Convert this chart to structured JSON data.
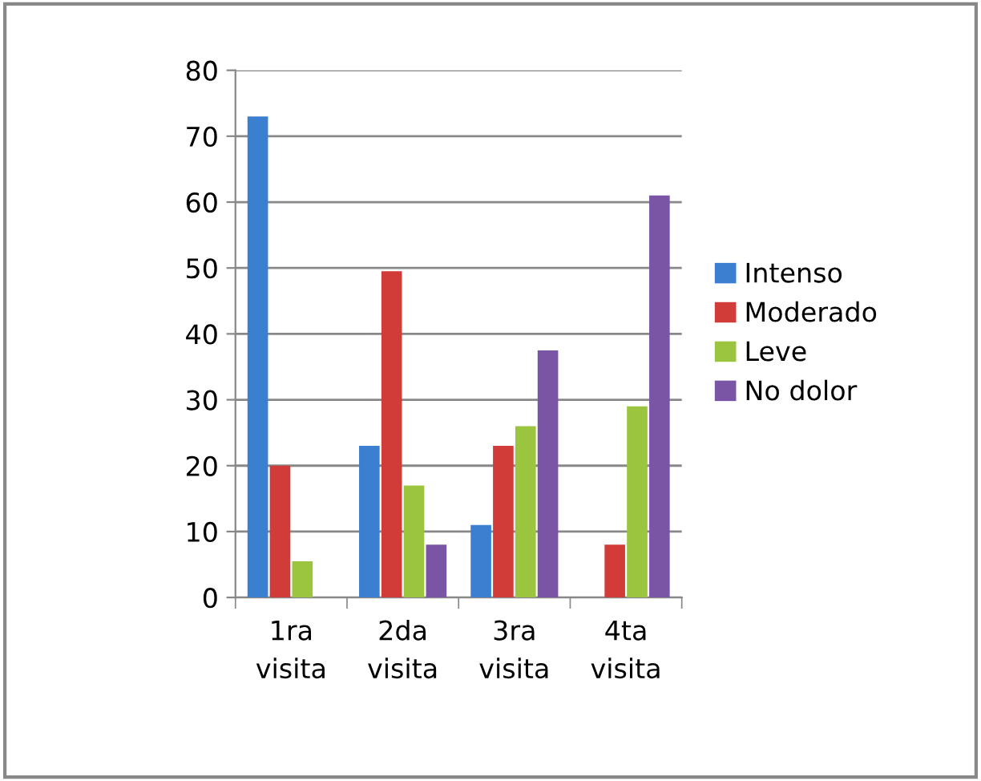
{
  "chart_data": {
    "type": "bar",
    "categories": [
      "1ra visita",
      "2da visita",
      "3ra visita",
      "4ta visita"
    ],
    "series": [
      {
        "name": "Intenso",
        "color": "#3b7fd0",
        "values": [
          73,
          23,
          11,
          0
        ]
      },
      {
        "name": "Moderado",
        "color": "#d13b38",
        "values": [
          20,
          49.5,
          23,
          8
        ]
      },
      {
        "name": "Leve",
        "color": "#9bc53f",
        "values": [
          5.5,
          17,
          26,
          29
        ]
      },
      {
        "name": "No dolor",
        "color": "#7a55a6",
        "values": [
          0,
          8,
          37.5,
          61
        ]
      }
    ],
    "ylim": [
      0,
      80
    ],
    "yticks": [
      0,
      10,
      20,
      30,
      40,
      50,
      60,
      70,
      80
    ],
    "grid": "y",
    "legend": "right"
  }
}
